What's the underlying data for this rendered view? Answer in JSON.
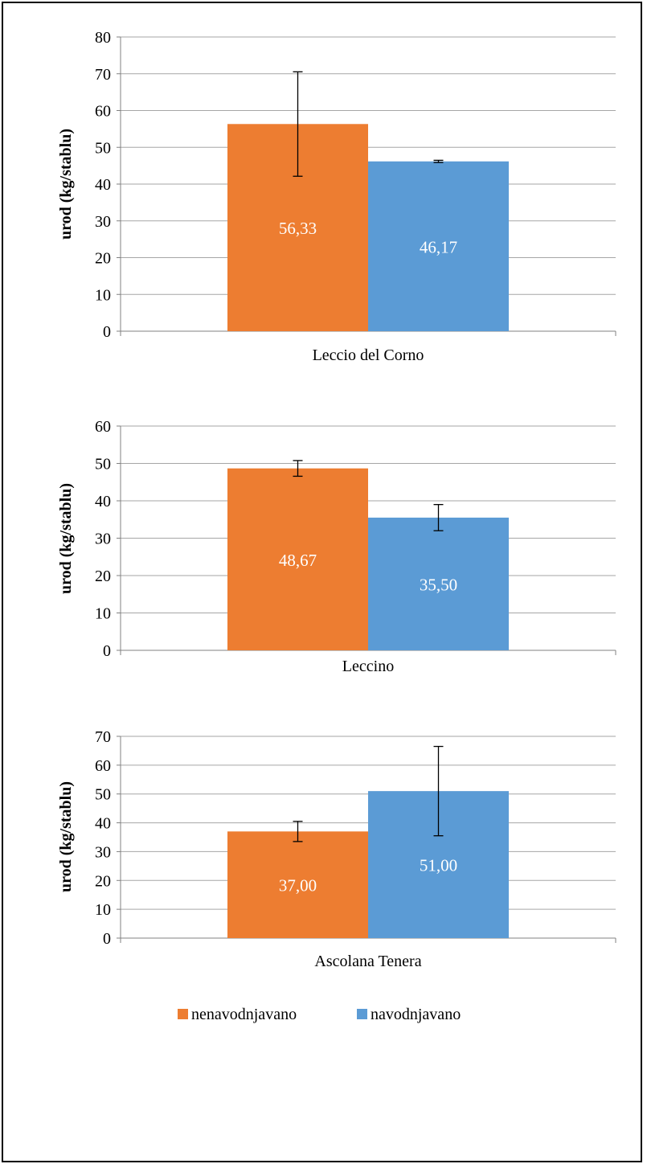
{
  "colors": {
    "nenavodnjavano": "#ED7D31",
    "navodnjavano": "#5B9BD5",
    "grid": "#A6A6A6"
  },
  "legend": {
    "items": [
      "nenavodnjavano",
      "navodnjavano"
    ]
  },
  "chart_data": [
    {
      "type": "bar",
      "categories": [
        "Leccio del Corno"
      ],
      "ylabel": "urod (kg/stablu)",
      "ylim": [
        0,
        80
      ],
      "ytick_step": 10,
      "grid": true,
      "series": [
        {
          "name": "nenavodnjavano",
          "values": [
            56.33
          ],
          "error": [
            14.2
          ],
          "label": "56,33"
        },
        {
          "name": "navodnjavano",
          "values": [
            46.17
          ],
          "error": [
            0.3
          ],
          "label": "46,17"
        }
      ]
    },
    {
      "type": "bar",
      "categories": [
        "Leccino"
      ],
      "ylabel": "urod (kg/stablu)",
      "ylim": [
        0,
        60
      ],
      "ytick_step": 10,
      "grid": true,
      "series": [
        {
          "name": "nenavodnjavano",
          "values": [
            48.67
          ],
          "error": [
            2.1
          ],
          "label": "48,67"
        },
        {
          "name": "navodnjavano",
          "values": [
            35.5
          ],
          "error": [
            3.5
          ],
          "label": "35,50"
        }
      ]
    },
    {
      "type": "bar",
      "categories": [
        "Ascolana Tenera"
      ],
      "ylabel": "urod (kg/stablu)",
      "ylim": [
        0,
        70
      ],
      "ytick_step": 10,
      "grid": true,
      "series": [
        {
          "name": "nenavodnjavano",
          "values": [
            37.0
          ],
          "error": [
            3.5
          ],
          "label": "37,00"
        },
        {
          "name": "navodnjavano",
          "values": [
            51.0
          ],
          "error": [
            15.5
          ],
          "label": "51,00"
        }
      ]
    }
  ]
}
